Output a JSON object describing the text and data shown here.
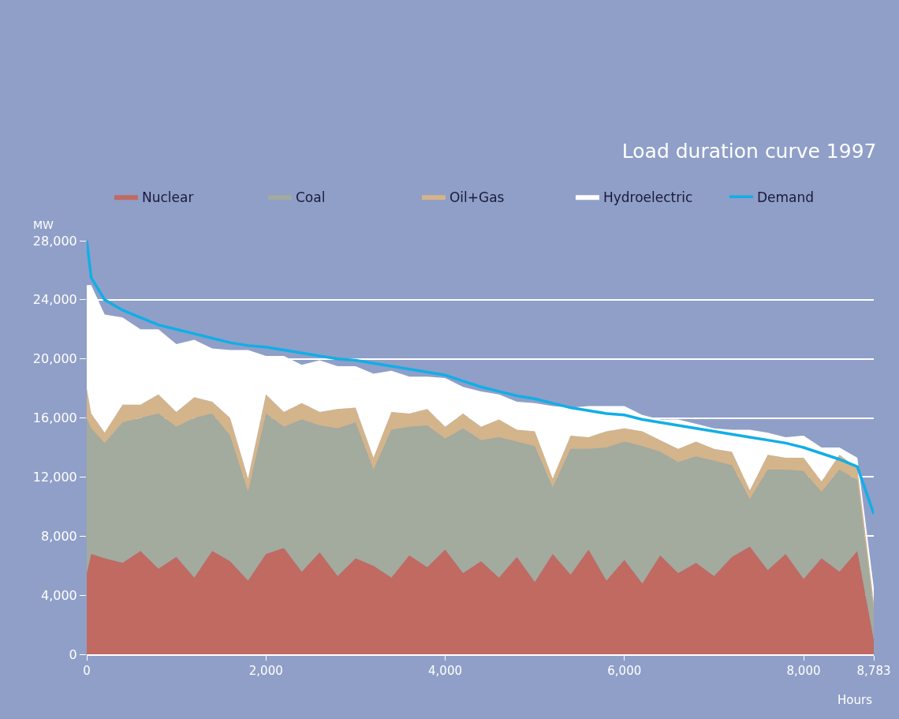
{
  "chart_data": {
    "type": "area",
    "title": "Load duration curve 1997",
    "ylabel": "MW",
    "xlabel": "Hours",
    "stacked": true,
    "x": [
      0,
      50,
      200,
      400,
      600,
      800,
      1000,
      1200,
      1400,
      1600,
      1800,
      2000,
      2200,
      2400,
      2600,
      2800,
      3000,
      3200,
      3400,
      3600,
      3800,
      4000,
      4200,
      4400,
      4600,
      4800,
      5000,
      5200,
      5400,
      5600,
      5800,
      6000,
      6200,
      6400,
      6600,
      6800,
      7000,
      7200,
      7400,
      7600,
      7800,
      8000,
      8200,
      8400,
      8600,
      8783
    ],
    "series": [
      {
        "name": "Nuclear",
        "color": "#c06a62",
        "values": [
          5500,
          6800,
          6500,
          6200,
          7000,
          5800,
          6600,
          5200,
          7000,
          6300,
          5000,
          6800,
          7200,
          5600,
          6900,
          5300,
          6500,
          6000,
          5200,
          6700,
          5900,
          7100,
          5500,
          6300,
          5200,
          6600,
          4900,
          6800,
          5400,
          7100,
          5000,
          6400,
          4800,
          6700,
          5500,
          6200,
          5300,
          6600,
          7300,
          5700,
          6800,
          5100,
          6500,
          5600,
          7000,
          1000
        ]
      },
      {
        "name": "Coal",
        "color": "#a3aa9e",
        "values": [
          10500,
          8500,
          7800,
          9500,
          9000,
          10500,
          8800,
          10800,
          9300,
          8500,
          6000,
          9500,
          8200,
          10300,
          8600,
          10000,
          9200,
          6500,
          10000,
          8700,
          9600,
          7500,
          9800,
          8200,
          9500,
          7800,
          9200,
          4500,
          8500,
          6800,
          9000,
          8000,
          9300,
          7000,
          7500,
          7200,
          7800,
          6200,
          3200,
          6800,
          5700,
          7300,
          4500,
          6900,
          4800,
          2000
        ]
      },
      {
        "name": "Oil+Gas",
        "color": "#d4b48a",
        "values": [
          2000,
          1000,
          700,
          1200,
          900,
          1300,
          1000,
          1400,
          800,
          1200,
          900,
          1300,
          1000,
          1100,
          900,
          1300,
          1000,
          800,
          1200,
          900,
          1100,
          800,
          1000,
          900,
          1200,
          800,
          1000,
          600,
          900,
          800,
          1100,
          900,
          1000,
          800,
          900,
          1000,
          800,
          900,
          600,
          1000,
          800,
          900,
          700,
          1000,
          800,
          500
        ]
      },
      {
        "name": "Hydroelectric",
        "color": "#ffffff",
        "values": [
          7000,
          8700,
          8000,
          5900,
          5100,
          4400,
          4600,
          3900,
          3600,
          4600,
          8700,
          2600,
          3800,
          2600,
          3500,
          2900,
          2800,
          5700,
          2800,
          2500,
          2200,
          3300,
          1800,
          2400,
          1700,
          1900,
          1900,
          4900,
          1900,
          2100,
          1700,
          1500,
          1100,
          1400,
          2000,
          1200,
          1400,
          1500,
          4100,
          1500,
          1400,
          1500,
          2300,
          500,
          700,
          1000
        ]
      },
      {
        "name": "Demand",
        "type": "line",
        "color": "#12aee6",
        "values": [
          28000,
          25500,
          24000,
          23300,
          22800,
          22300,
          22000,
          21700,
          21400,
          21100,
          20900,
          20800,
          20600,
          20400,
          20200,
          20000,
          19900,
          19700,
          19500,
          19300,
          19100,
          18900,
          18500,
          18100,
          17800,
          17500,
          17300,
          17000,
          16700,
          16500,
          16300,
          16200,
          15900,
          15700,
          15500,
          15300,
          15100,
          14900,
          14700,
          14500,
          14300,
          14000,
          13600,
          13200,
          12700,
          9500
        ]
      }
    ],
    "xlim": [
      0,
      8783
    ],
    "ylim": [
      0,
      28000
    ],
    "xticks": [
      0,
      {
        "value": 2000,
        "label": "2,000"
      },
      {
        "value": 4000,
        "label": "4,000"
      },
      {
        "value": 6000,
        "label": "6,000"
      },
      {
        "value": 8000,
        "label": "8,000"
      },
      {
        "value": 8783,
        "label": "8,783"
      }
    ],
    "yticks": [
      0,
      {
        "value": 4000,
        "label": "4,000"
      },
      {
        "value": 8000,
        "label": "8,000"
      },
      {
        "value": 12000,
        "label": "12,000"
      },
      {
        "value": 16000,
        "label": "16,000"
      },
      {
        "value": 20000,
        "label": "20,000"
      },
      {
        "value": 24000,
        "label": "24,000"
      },
      {
        "value": 28000,
        "label": "28,000"
      }
    ],
    "grid": "y",
    "legend": "top left"
  }
}
